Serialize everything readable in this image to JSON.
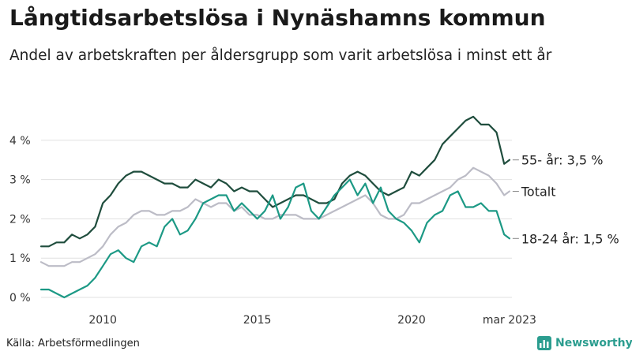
{
  "header": {
    "title": "Långtidsarbetslösa i Nynäshamns kommun",
    "subtitle": "Andel av arbetskraften per åldersgrupp som varit arbetslösa i minst ett år"
  },
  "footer": {
    "source": "Källa: Arbetsförmedlingen",
    "brand": "Newsworthy",
    "brand_color": "#2b9d8f",
    "brand_icon": "bar-chart-icon"
  },
  "chart_data": {
    "type": "line",
    "xlim": [
      2008.0,
      2023.25
    ],
    "ylim": [
      0,
      5
    ],
    "yticks": [
      0,
      1,
      2,
      3,
      4
    ],
    "ytick_labels": [
      "0 %",
      "1 %",
      "2 %",
      "3 %",
      "4 %"
    ],
    "xticks": [
      2010,
      2015,
      2020,
      2023.17
    ],
    "xtick_labels": [
      "2010",
      "2015",
      "2020",
      "mar 2023"
    ],
    "grid": true,
    "legend": "inline-right",
    "series": [
      {
        "name": "55- år",
        "end_label": "55- år: 3,5 %",
        "color": "#1f4d3d",
        "points": [
          [
            2008.0,
            1.3
          ],
          [
            2008.25,
            1.3
          ],
          [
            2008.5,
            1.4
          ],
          [
            2008.75,
            1.4
          ],
          [
            2009.0,
            1.6
          ],
          [
            2009.25,
            1.5
          ],
          [
            2009.5,
            1.6
          ],
          [
            2009.75,
            1.8
          ],
          [
            2010.0,
            2.4
          ],
          [
            2010.25,
            2.6
          ],
          [
            2010.5,
            2.9
          ],
          [
            2010.75,
            3.1
          ],
          [
            2011.0,
            3.2
          ],
          [
            2011.25,
            3.2
          ],
          [
            2011.5,
            3.1
          ],
          [
            2011.75,
            3.0
          ],
          [
            2012.0,
            2.9
          ],
          [
            2012.25,
            2.9
          ],
          [
            2012.5,
            2.8
          ],
          [
            2012.75,
            2.8
          ],
          [
            2013.0,
            3.0
          ],
          [
            2013.25,
            2.9
          ],
          [
            2013.5,
            2.8
          ],
          [
            2013.75,
            3.0
          ],
          [
            2014.0,
            2.9
          ],
          [
            2014.25,
            2.7
          ],
          [
            2014.5,
            2.8
          ],
          [
            2014.75,
            2.7
          ],
          [
            2015.0,
            2.7
          ],
          [
            2015.25,
            2.5
          ],
          [
            2015.5,
            2.3
          ],
          [
            2015.75,
            2.4
          ],
          [
            2016.0,
            2.5
          ],
          [
            2016.25,
            2.6
          ],
          [
            2016.5,
            2.6
          ],
          [
            2016.75,
            2.5
          ],
          [
            2017.0,
            2.4
          ],
          [
            2017.25,
            2.4
          ],
          [
            2017.5,
            2.5
          ],
          [
            2017.75,
            2.9
          ],
          [
            2018.0,
            3.1
          ],
          [
            2018.25,
            3.2
          ],
          [
            2018.5,
            3.1
          ],
          [
            2018.75,
            2.9
          ],
          [
            2019.0,
            2.7
          ],
          [
            2019.25,
            2.6
          ],
          [
            2019.5,
            2.7
          ],
          [
            2019.75,
            2.8
          ],
          [
            2020.0,
            3.2
          ],
          [
            2020.25,
            3.1
          ],
          [
            2020.5,
            3.3
          ],
          [
            2020.75,
            3.5
          ],
          [
            2021.0,
            3.9
          ],
          [
            2021.25,
            4.1
          ],
          [
            2021.5,
            4.3
          ],
          [
            2021.75,
            4.5
          ],
          [
            2022.0,
            4.6
          ],
          [
            2022.25,
            4.4
          ],
          [
            2022.5,
            4.4
          ],
          [
            2022.75,
            4.2
          ],
          [
            2023.0,
            3.4
          ],
          [
            2023.17,
            3.5
          ]
        ]
      },
      {
        "name": "Totalt",
        "end_label": "Totalt",
        "color": "#bcbcc6",
        "points": [
          [
            2008.0,
            0.9
          ],
          [
            2008.25,
            0.8
          ],
          [
            2008.5,
            0.8
          ],
          [
            2008.75,
            0.8
          ],
          [
            2009.0,
            0.9
          ],
          [
            2009.25,
            0.9
          ],
          [
            2009.5,
            1.0
          ],
          [
            2009.75,
            1.1
          ],
          [
            2010.0,
            1.3
          ],
          [
            2010.25,
            1.6
          ],
          [
            2010.5,
            1.8
          ],
          [
            2010.75,
            1.9
          ],
          [
            2011.0,
            2.1
          ],
          [
            2011.25,
            2.2
          ],
          [
            2011.5,
            2.2
          ],
          [
            2011.75,
            2.1
          ],
          [
            2012.0,
            2.1
          ],
          [
            2012.25,
            2.2
          ],
          [
            2012.5,
            2.2
          ],
          [
            2012.75,
            2.3
          ],
          [
            2013.0,
            2.5
          ],
          [
            2013.25,
            2.4
          ],
          [
            2013.5,
            2.3
          ],
          [
            2013.75,
            2.4
          ],
          [
            2014.0,
            2.4
          ],
          [
            2014.25,
            2.2
          ],
          [
            2014.5,
            2.3
          ],
          [
            2014.75,
            2.1
          ],
          [
            2015.0,
            2.1
          ],
          [
            2015.25,
            2.0
          ],
          [
            2015.5,
            2.0
          ],
          [
            2015.75,
            2.1
          ],
          [
            2016.0,
            2.1
          ],
          [
            2016.25,
            2.1
          ],
          [
            2016.5,
            2.0
          ],
          [
            2016.75,
            2.0
          ],
          [
            2017.0,
            2.0
          ],
          [
            2017.25,
            2.1
          ],
          [
            2017.5,
            2.2
          ],
          [
            2017.75,
            2.3
          ],
          [
            2018.0,
            2.4
          ],
          [
            2018.25,
            2.5
          ],
          [
            2018.5,
            2.6
          ],
          [
            2018.75,
            2.4
          ],
          [
            2019.0,
            2.1
          ],
          [
            2019.25,
            2.0
          ],
          [
            2019.5,
            2.0
          ],
          [
            2019.75,
            2.1
          ],
          [
            2020.0,
            2.4
          ],
          [
            2020.25,
            2.4
          ],
          [
            2020.5,
            2.5
          ],
          [
            2020.75,
            2.6
          ],
          [
            2021.0,
            2.7
          ],
          [
            2021.25,
            2.8
          ],
          [
            2021.5,
            3.0
          ],
          [
            2021.75,
            3.1
          ],
          [
            2022.0,
            3.3
          ],
          [
            2022.25,
            3.2
          ],
          [
            2022.5,
            3.1
          ],
          [
            2022.75,
            2.9
          ],
          [
            2023.0,
            2.6
          ],
          [
            2023.17,
            2.7
          ]
        ]
      },
      {
        "name": "18-24 år",
        "end_label": "18-24 år: 1,5 %",
        "color": "#1c9985",
        "points": [
          [
            2008.0,
            0.2
          ],
          [
            2008.25,
            0.2
          ],
          [
            2008.5,
            0.1
          ],
          [
            2008.75,
            0.0
          ],
          [
            2009.0,
            0.1
          ],
          [
            2009.25,
            0.2
          ],
          [
            2009.5,
            0.3
          ],
          [
            2009.75,
            0.5
          ],
          [
            2010.0,
            0.8
          ],
          [
            2010.25,
            1.1
          ],
          [
            2010.5,
            1.2
          ],
          [
            2010.75,
            1.0
          ],
          [
            2011.0,
            0.9
          ],
          [
            2011.25,
            1.3
          ],
          [
            2011.5,
            1.4
          ],
          [
            2011.75,
            1.3
          ],
          [
            2012.0,
            1.8
          ],
          [
            2012.25,
            2.0
          ],
          [
            2012.5,
            1.6
          ],
          [
            2012.75,
            1.7
          ],
          [
            2013.0,
            2.0
          ],
          [
            2013.25,
            2.4
          ],
          [
            2013.5,
            2.5
          ],
          [
            2013.75,
            2.6
          ],
          [
            2014.0,
            2.6
          ],
          [
            2014.25,
            2.2
          ],
          [
            2014.5,
            2.4
          ],
          [
            2014.75,
            2.2
          ],
          [
            2015.0,
            2.0
          ],
          [
            2015.25,
            2.2
          ],
          [
            2015.5,
            2.6
          ],
          [
            2015.75,
            2.0
          ],
          [
            2016.0,
            2.3
          ],
          [
            2016.25,
            2.8
          ],
          [
            2016.5,
            2.9
          ],
          [
            2016.75,
            2.2
          ],
          [
            2017.0,
            2.0
          ],
          [
            2017.25,
            2.3
          ],
          [
            2017.5,
            2.6
          ],
          [
            2017.75,
            2.8
          ],
          [
            2018.0,
            3.0
          ],
          [
            2018.25,
            2.6
          ],
          [
            2018.5,
            2.9
          ],
          [
            2018.75,
            2.4
          ],
          [
            2019.0,
            2.8
          ],
          [
            2019.25,
            2.2
          ],
          [
            2019.5,
            2.0
          ],
          [
            2019.75,
            1.9
          ],
          [
            2020.0,
            1.7
          ],
          [
            2020.25,
            1.4
          ],
          [
            2020.5,
            1.9
          ],
          [
            2020.75,
            2.1
          ],
          [
            2021.0,
            2.2
          ],
          [
            2021.25,
            2.6
          ],
          [
            2021.5,
            2.7
          ],
          [
            2021.75,
            2.3
          ],
          [
            2022.0,
            2.3
          ],
          [
            2022.25,
            2.4
          ],
          [
            2022.5,
            2.2
          ],
          [
            2022.75,
            2.2
          ],
          [
            2023.0,
            1.6
          ],
          [
            2023.17,
            1.5
          ]
        ]
      }
    ]
  }
}
